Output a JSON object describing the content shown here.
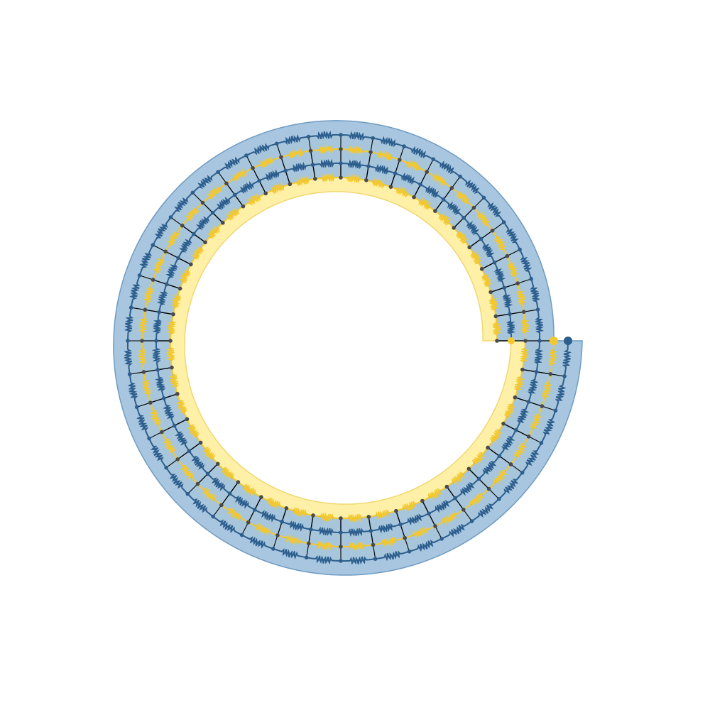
{
  "diagram": {
    "kind": "spiral resistor network",
    "turns": 2,
    "layers": [
      "outer",
      "inner"
    ],
    "spokes_per_turn": 40,
    "colors": {
      "background": "#ffffff",
      "outer_band_fill": "#fff0a8",
      "outer_band_edge": "#f1d770",
      "outer_resistor": "#f2c830",
      "inner_band_fill": "#a3c3dd",
      "inner_band_edge": "#6e9bc3",
      "inner_resistor": "#2c5e8e",
      "spoke": "#000000",
      "node": "#4a4a4a",
      "inner_node": "#2c5e8e",
      "terminal_outer": "#f2c830",
      "terminal_inner": "#2c5e8e"
    },
    "terminals": [
      {
        "name": "outer-layer-end",
        "color": "#f2c830"
      },
      {
        "name": "inner-layer-end",
        "color": "#2c5e8e"
      }
    ]
  }
}
